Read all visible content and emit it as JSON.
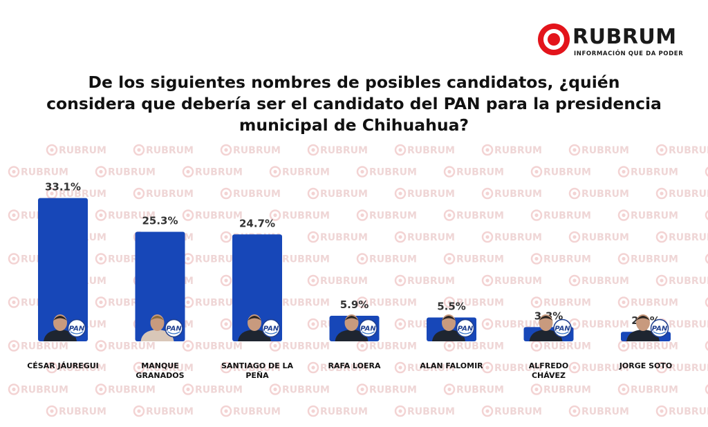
{
  "brand": {
    "name": "RUBRUM",
    "tagline": "INFORMACIÓN QUE DA PODER"
  },
  "chart_data": {
    "type": "bar",
    "title": "De los siguientes nombres de posibles candidatos, ¿quién considera que debería ser el candidato del PAN para la presidencia municipal de Chihuahua?",
    "categories": [
      "CÉSAR JÁUREGUI",
      "MANQUE GRANADOS",
      "SANTIAGO DE LA PEÑA",
      "RAFA LOERA",
      "ALAN FALOMIR",
      "ALFREDO CHÁVEZ",
      "JORGE SOTO"
    ],
    "category_lines": [
      [
        "CÉSAR JÁUREGUI"
      ],
      [
        "MANQUE",
        "GRANADOS"
      ],
      [
        "SANTIAGO DE LA",
        "PEÑA"
      ],
      [
        "RAFA LOERA"
      ],
      [
        "ALAN FALOMIR"
      ],
      [
        "ALFREDO",
        "CHÁVEZ"
      ],
      [
        "JORGE SOTO"
      ]
    ],
    "values": [
      33.1,
      25.3,
      24.7,
      5.9,
      5.5,
      3.3,
      2.2
    ],
    "value_labels": [
      "33.1%",
      "25.3%",
      "24.7%",
      "5.9%",
      "5.5%",
      "3.3%",
      "2.2%"
    ],
    "party_badge": "PAN",
    "bar_color": "#1747b8",
    "ylim": [
      0,
      34
    ],
    "grid": false
  }
}
